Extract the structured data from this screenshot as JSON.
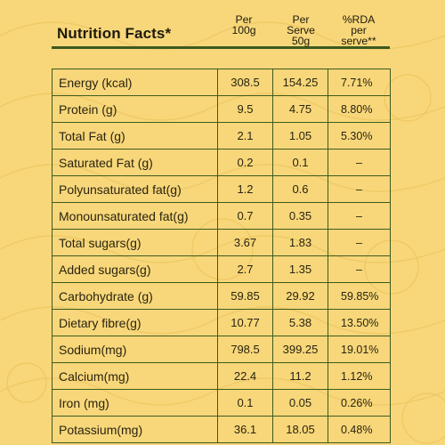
{
  "title": "Nutrition Facts*",
  "columns": {
    "per_100g": "Per 100g",
    "per_serve": "Per Serve 50g",
    "rda": "%RDA per serve**"
  },
  "rows": [
    {
      "name": "Energy (kcal)",
      "per100": "308.5",
      "serve": "154.25",
      "rda": "7.71%"
    },
    {
      "name": "Protein (g)",
      "per100": "9.5",
      "serve": "4.75",
      "rda": "8.80%"
    },
    {
      "name": "Total Fat (g)",
      "per100": "2.1",
      "serve": "1.05",
      "rda": "5.30%"
    },
    {
      "name": "Saturated Fat (g)",
      "per100": "0.2",
      "serve": "0.1",
      "rda": "–"
    },
    {
      "name": "Polyunsaturated fat(g)",
      "per100": "1.2",
      "serve": "0.6",
      "rda": "–"
    },
    {
      "name": "Monounsaturated fat(g)",
      "per100": "0.7",
      "serve": "0.35",
      "rda": "–"
    },
    {
      "name": "Total sugars(g)",
      "per100": "3.67",
      "serve": "1.83",
      "rda": "–"
    },
    {
      "name": "Added sugars(g)",
      "per100": "2.7",
      "serve": "1.35",
      "rda": "–"
    },
    {
      "name": "Carbohydrate (g)",
      "per100": "59.85",
      "serve": "29.92",
      "rda": "59.85%"
    },
    {
      "name": "Dietary fibre(g)",
      "per100": "10.77",
      "serve": "5.38",
      "rda": "13.50%"
    },
    {
      "name": "Sodium(mg)",
      "per100": "798.5",
      "serve": "399.25",
      "rda": "19.01%"
    },
    {
      "name": "Calcium(mg)",
      "per100": "22.4",
      "serve": "11.2",
      "rda": "1.12%"
    },
    {
      "name": "Iron (mg)",
      "per100": "0.1",
      "serve": "0.05",
      "rda": "0.26%"
    },
    {
      "name": "Potassium(mg)",
      "per100": "36.1",
      "serve": "18.05",
      "rda": "0.48%"
    }
  ],
  "colors": {
    "background": "#f7d77a",
    "rule": "#3e5a1e",
    "text": "#2b2410"
  }
}
